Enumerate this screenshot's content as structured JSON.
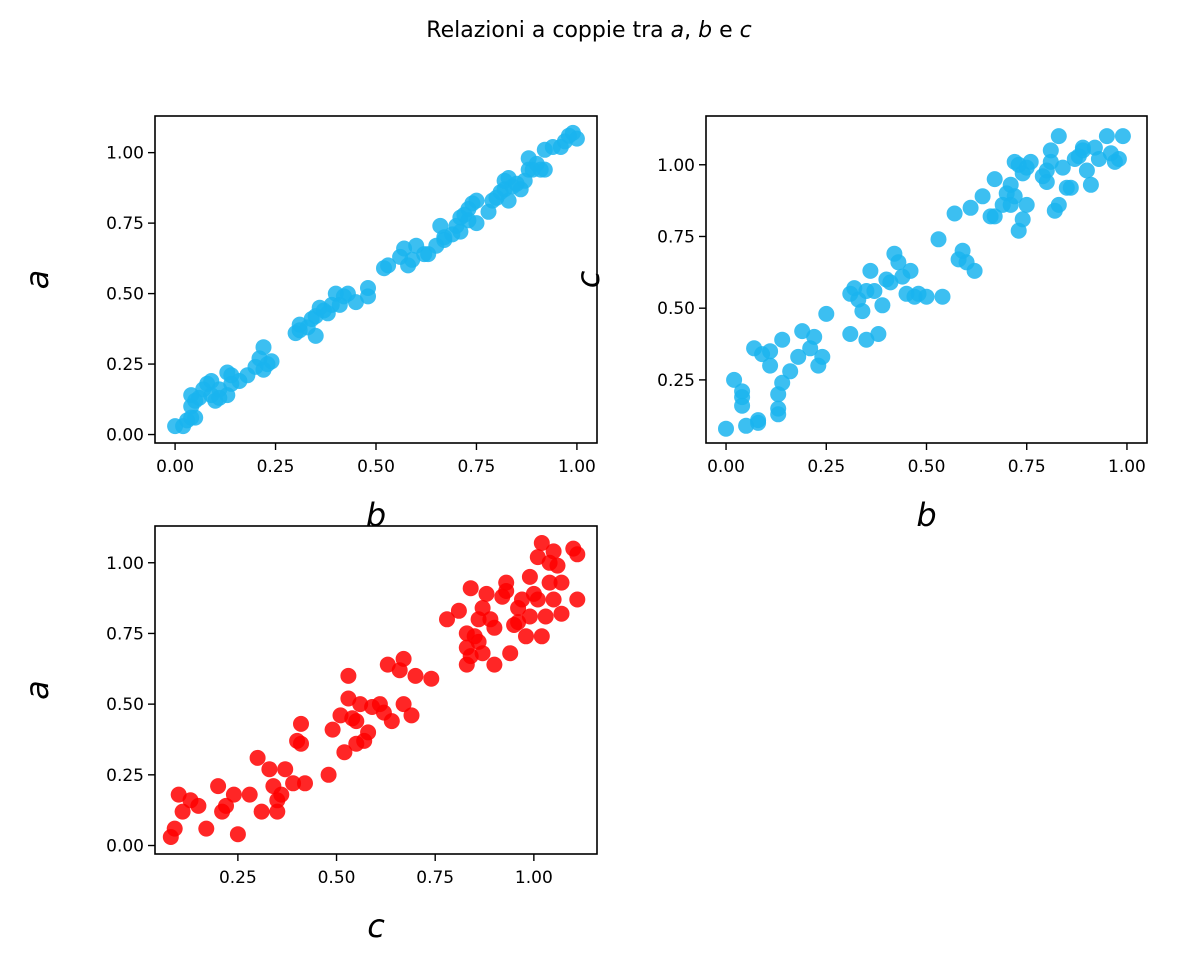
{
  "title": {
    "prefix": "Relazioni a coppie tra ",
    "v1": "a",
    "sep1": ", ",
    "v2": "b",
    "sep2": " e ",
    "v3": "c"
  },
  "chart_data": [
    {
      "type": "scatter",
      "id": "b_vs_a",
      "xlabel": "b",
      "ylabel": "a",
      "xlim": [
        -0.05,
        1.05
      ],
      "ylim": [
        -0.03,
        1.13
      ],
      "xticks": [
        "0.00",
        "0.25",
        "0.50",
        "0.75",
        "1.00"
      ],
      "yticks": [
        "0.00",
        "0.25",
        "0.50",
        "0.75",
        "1.00"
      ],
      "grid": false,
      "color": "#1ab4ee",
      "points": [
        [
          0.0,
          0.03
        ],
        [
          0.02,
          0.03
        ],
        [
          0.03,
          0.05
        ],
        [
          0.04,
          0.06
        ],
        [
          0.05,
          0.06
        ],
        [
          0.04,
          0.1
        ],
        [
          0.05,
          0.12
        ],
        [
          0.04,
          0.14
        ],
        [
          0.06,
          0.13
        ],
        [
          0.07,
          0.16
        ],
        [
          0.08,
          0.18
        ],
        [
          0.09,
          0.19
        ],
        [
          0.09,
          0.14
        ],
        [
          0.1,
          0.12
        ],
        [
          0.11,
          0.13
        ],
        [
          0.11,
          0.16
        ],
        [
          0.13,
          0.14
        ],
        [
          0.14,
          0.18
        ],
        [
          0.14,
          0.21
        ],
        [
          0.13,
          0.22
        ],
        [
          0.16,
          0.19
        ],
        [
          0.18,
          0.21
        ],
        [
          0.2,
          0.24
        ],
        [
          0.21,
          0.27
        ],
        [
          0.22,
          0.23
        ],
        [
          0.23,
          0.25
        ],
        [
          0.22,
          0.31
        ],
        [
          0.24,
          0.26
        ],
        [
          0.3,
          0.36
        ],
        [
          0.31,
          0.37
        ],
        [
          0.31,
          0.39
        ],
        [
          0.33,
          0.38
        ],
        [
          0.34,
          0.41
        ],
        [
          0.35,
          0.35
        ],
        [
          0.35,
          0.42
        ],
        [
          0.36,
          0.45
        ],
        [
          0.37,
          0.44
        ],
        [
          0.38,
          0.43
        ],
        [
          0.39,
          0.46
        ],
        [
          0.4,
          0.5
        ],
        [
          0.41,
          0.46
        ],
        [
          0.42,
          0.49
        ],
        [
          0.43,
          0.5
        ],
        [
          0.45,
          0.47
        ],
        [
          0.48,
          0.49
        ],
        [
          0.48,
          0.52
        ],
        [
          0.52,
          0.59
        ],
        [
          0.53,
          0.6
        ],
        [
          0.56,
          0.63
        ],
        [
          0.57,
          0.66
        ],
        [
          0.58,
          0.6
        ],
        [
          0.59,
          0.62
        ],
        [
          0.6,
          0.67
        ],
        [
          0.62,
          0.64
        ],
        [
          0.63,
          0.64
        ],
        [
          0.65,
          0.67
        ],
        [
          0.66,
          0.74
        ],
        [
          0.67,
          0.69
        ],
        [
          0.67,
          0.7
        ],
        [
          0.69,
          0.71
        ],
        [
          0.7,
          0.74
        ],
        [
          0.71,
          0.72
        ],
        [
          0.71,
          0.77
        ],
        [
          0.72,
          0.78
        ],
        [
          0.73,
          0.76
        ],
        [
          0.73,
          0.8
        ],
        [
          0.74,
          0.82
        ],
        [
          0.75,
          0.83
        ],
        [
          0.75,
          0.75
        ],
        [
          0.78,
          0.79
        ],
        [
          0.79,
          0.83
        ],
        [
          0.8,
          0.84
        ],
        [
          0.81,
          0.86
        ],
        [
          0.82,
          0.87
        ],
        [
          0.82,
          0.9
        ],
        [
          0.83,
          0.91
        ],
        [
          0.83,
          0.83
        ],
        [
          0.84,
          0.88
        ],
        [
          0.85,
          0.89
        ],
        [
          0.86,
          0.87
        ],
        [
          0.87,
          0.9
        ],
        [
          0.88,
          0.94
        ],
        [
          0.88,
          0.98
        ],
        [
          0.89,
          0.94
        ],
        [
          0.9,
          0.96
        ],
        [
          0.91,
          0.94
        ],
        [
          0.92,
          0.94
        ],
        [
          0.92,
          1.01
        ],
        [
          0.94,
          1.02
        ],
        [
          0.96,
          1.02
        ],
        [
          0.97,
          1.04
        ],
        [
          0.98,
          1.06
        ],
        [
          0.99,
          1.07
        ],
        [
          1.0,
          1.05
        ]
      ]
    },
    {
      "type": "scatter",
      "id": "b_vs_c",
      "xlabel": "b",
      "ylabel": "c",
      "xlim": [
        -0.05,
        1.05
      ],
      "ylim": [
        0.03,
        1.17
      ],
      "xticks": [
        "0.00",
        "0.25",
        "0.50",
        "0.75",
        "1.00"
      ],
      "yticks": [
        "0.25",
        "0.50",
        "0.75",
        "1.00"
      ],
      "grid": false,
      "color": "#1ab4ee",
      "points": [
        [
          0.0,
          0.08
        ],
        [
          0.02,
          0.25
        ],
        [
          0.04,
          0.21
        ],
        [
          0.04,
          0.19
        ],
        [
          0.04,
          0.16
        ],
        [
          0.05,
          0.09
        ],
        [
          0.07,
          0.36
        ],
        [
          0.08,
          0.11
        ],
        [
          0.08,
          0.1
        ],
        [
          0.09,
          0.34
        ],
        [
          0.11,
          0.3
        ],
        [
          0.11,
          0.35
        ],
        [
          0.13,
          0.15
        ],
        [
          0.13,
          0.13
        ],
        [
          0.13,
          0.2
        ],
        [
          0.14,
          0.24
        ],
        [
          0.14,
          0.39
        ],
        [
          0.16,
          0.28
        ],
        [
          0.18,
          0.33
        ],
        [
          0.19,
          0.42
        ],
        [
          0.21,
          0.36
        ],
        [
          0.22,
          0.4
        ],
        [
          0.23,
          0.3
        ],
        [
          0.24,
          0.33
        ],
        [
          0.25,
          0.48
        ],
        [
          0.31,
          0.55
        ],
        [
          0.31,
          0.41
        ],
        [
          0.32,
          0.57
        ],
        [
          0.33,
          0.53
        ],
        [
          0.34,
          0.49
        ],
        [
          0.35,
          0.56
        ],
        [
          0.35,
          0.39
        ],
        [
          0.36,
          0.63
        ],
        [
          0.37,
          0.56
        ],
        [
          0.38,
          0.41
        ],
        [
          0.39,
          0.51
        ],
        [
          0.4,
          0.6
        ],
        [
          0.41,
          0.59
        ],
        [
          0.42,
          0.69
        ],
        [
          0.43,
          0.66
        ],
        [
          0.44,
          0.61
        ],
        [
          0.45,
          0.55
        ],
        [
          0.46,
          0.63
        ],
        [
          0.47,
          0.54
        ],
        [
          0.48,
          0.55
        ],
        [
          0.5,
          0.54
        ],
        [
          0.53,
          0.74
        ],
        [
          0.54,
          0.54
        ],
        [
          0.57,
          0.83
        ],
        [
          0.58,
          0.67
        ],
        [
          0.59,
          0.7
        ],
        [
          0.6,
          0.66
        ],
        [
          0.61,
          0.85
        ],
        [
          0.62,
          0.63
        ],
        [
          0.64,
          0.89
        ],
        [
          0.66,
          0.82
        ],
        [
          0.67,
          0.82
        ],
        [
          0.67,
          0.95
        ],
        [
          0.69,
          0.86
        ],
        [
          0.7,
          0.9
        ],
        [
          0.71,
          0.93
        ],
        [
          0.71,
          0.86
        ],
        [
          0.72,
          0.89
        ],
        [
          0.72,
          1.01
        ],
        [
          0.73,
          0.77
        ],
        [
          0.73,
          1.0
        ],
        [
          0.74,
          0.97
        ],
        [
          0.74,
          0.81
        ],
        [
          0.75,
          0.86
        ],
        [
          0.75,
          0.99
        ],
        [
          0.76,
          1.01
        ],
        [
          0.79,
          0.96
        ],
        [
          0.8,
          0.94
        ],
        [
          0.8,
          0.98
        ],
        [
          0.81,
          1.01
        ],
        [
          0.81,
          1.05
        ],
        [
          0.82,
          0.84
        ],
        [
          0.83,
          0.86
        ],
        [
          0.83,
          1.1
        ],
        [
          0.84,
          0.99
        ],
        [
          0.85,
          0.92
        ],
        [
          0.86,
          0.92
        ],
        [
          0.87,
          1.02
        ],
        [
          0.88,
          1.03
        ],
        [
          0.89,
          1.06
        ],
        [
          0.89,
          1.05
        ],
        [
          0.9,
          0.98
        ],
        [
          0.91,
          0.93
        ],
        [
          0.92,
          1.06
        ],
        [
          0.93,
          1.02
        ],
        [
          0.95,
          1.1
        ],
        [
          0.96,
          1.04
        ],
        [
          0.97,
          1.01
        ],
        [
          0.98,
          1.02
        ],
        [
          0.99,
          1.1
        ]
      ]
    },
    {
      "type": "scatter",
      "id": "c_vs_a",
      "xlabel": "c",
      "ylabel": "a",
      "xlim": [
        0.04,
        1.16
      ],
      "ylim": [
        -0.03,
        1.13
      ],
      "xticks": [
        "0.25",
        "0.50",
        "0.75",
        "1.00"
      ],
      "yticks": [
        "0.00",
        "0.25",
        "0.50",
        "0.75",
        "1.00"
      ],
      "grid": false,
      "color": "#ff0000",
      "points": [
        [
          0.08,
          0.03
        ],
        [
          0.09,
          0.06
        ],
        [
          0.1,
          0.18
        ],
        [
          0.11,
          0.12
        ],
        [
          0.13,
          0.16
        ],
        [
          0.15,
          0.14
        ],
        [
          0.17,
          0.06
        ],
        [
          0.2,
          0.21
        ],
        [
          0.21,
          0.12
        ],
        [
          0.22,
          0.14
        ],
        [
          0.24,
          0.18
        ],
        [
          0.25,
          0.04
        ],
        [
          0.28,
          0.18
        ],
        [
          0.3,
          0.31
        ],
        [
          0.31,
          0.12
        ],
        [
          0.33,
          0.27
        ],
        [
          0.34,
          0.21
        ],
        [
          0.35,
          0.16
        ],
        [
          0.35,
          0.12
        ],
        [
          0.36,
          0.18
        ],
        [
          0.37,
          0.27
        ],
        [
          0.39,
          0.22
        ],
        [
          0.4,
          0.37
        ],
        [
          0.41,
          0.36
        ],
        [
          0.41,
          0.43
        ],
        [
          0.42,
          0.22
        ],
        [
          0.48,
          0.25
        ],
        [
          0.49,
          0.41
        ],
        [
          0.51,
          0.46
        ],
        [
          0.52,
          0.33
        ],
        [
          0.53,
          0.6
        ],
        [
          0.53,
          0.52
        ],
        [
          0.54,
          0.45
        ],
        [
          0.55,
          0.36
        ],
        [
          0.55,
          0.44
        ],
        [
          0.56,
          0.5
        ],
        [
          0.57,
          0.37
        ],
        [
          0.58,
          0.4
        ],
        [
          0.59,
          0.49
        ],
        [
          0.61,
          0.5
        ],
        [
          0.62,
          0.47
        ],
        [
          0.63,
          0.64
        ],
        [
          0.64,
          0.44
        ],
        [
          0.66,
          0.62
        ],
        [
          0.67,
          0.5
        ],
        [
          0.67,
          0.66
        ],
        [
          0.69,
          0.46
        ],
        [
          0.7,
          0.6
        ],
        [
          0.74,
          0.59
        ],
        [
          0.78,
          0.8
        ],
        [
          0.81,
          0.83
        ],
        [
          0.83,
          0.75
        ],
        [
          0.83,
          0.7
        ],
        [
          0.83,
          0.64
        ],
        [
          0.84,
          0.91
        ],
        [
          0.84,
          0.67
        ],
        [
          0.85,
          0.74
        ],
        [
          0.86,
          0.8
        ],
        [
          0.86,
          0.72
        ],
        [
          0.87,
          0.68
        ],
        [
          0.87,
          0.84
        ],
        [
          0.88,
          0.89
        ],
        [
          0.89,
          0.8
        ],
        [
          0.9,
          0.77
        ],
        [
          0.9,
          0.64
        ],
        [
          0.92,
          0.88
        ],
        [
          0.93,
          0.93
        ],
        [
          0.93,
          0.9
        ],
        [
          0.94,
          0.68
        ],
        [
          0.95,
          0.78
        ],
        [
          0.96,
          0.84
        ],
        [
          0.96,
          0.79
        ],
        [
          0.97,
          0.87
        ],
        [
          0.98,
          0.74
        ],
        [
          0.99,
          0.81
        ],
        [
          0.99,
          0.95
        ],
        [
          1.0,
          0.89
        ],
        [
          1.01,
          0.87
        ],
        [
          1.01,
          1.02
        ],
        [
          1.02,
          0.74
        ],
        [
          1.02,
          1.07
        ],
        [
          1.03,
          0.81
        ],
        [
          1.04,
          0.93
        ],
        [
          1.04,
          1.0
        ],
        [
          1.05,
          1.04
        ],
        [
          1.05,
          0.87
        ],
        [
          1.06,
          0.99
        ],
        [
          1.07,
          0.82
        ],
        [
          1.07,
          0.93
        ],
        [
          1.1,
          1.05
        ],
        [
          1.11,
          0.87
        ],
        [
          1.11,
          1.03
        ]
      ]
    }
  ]
}
